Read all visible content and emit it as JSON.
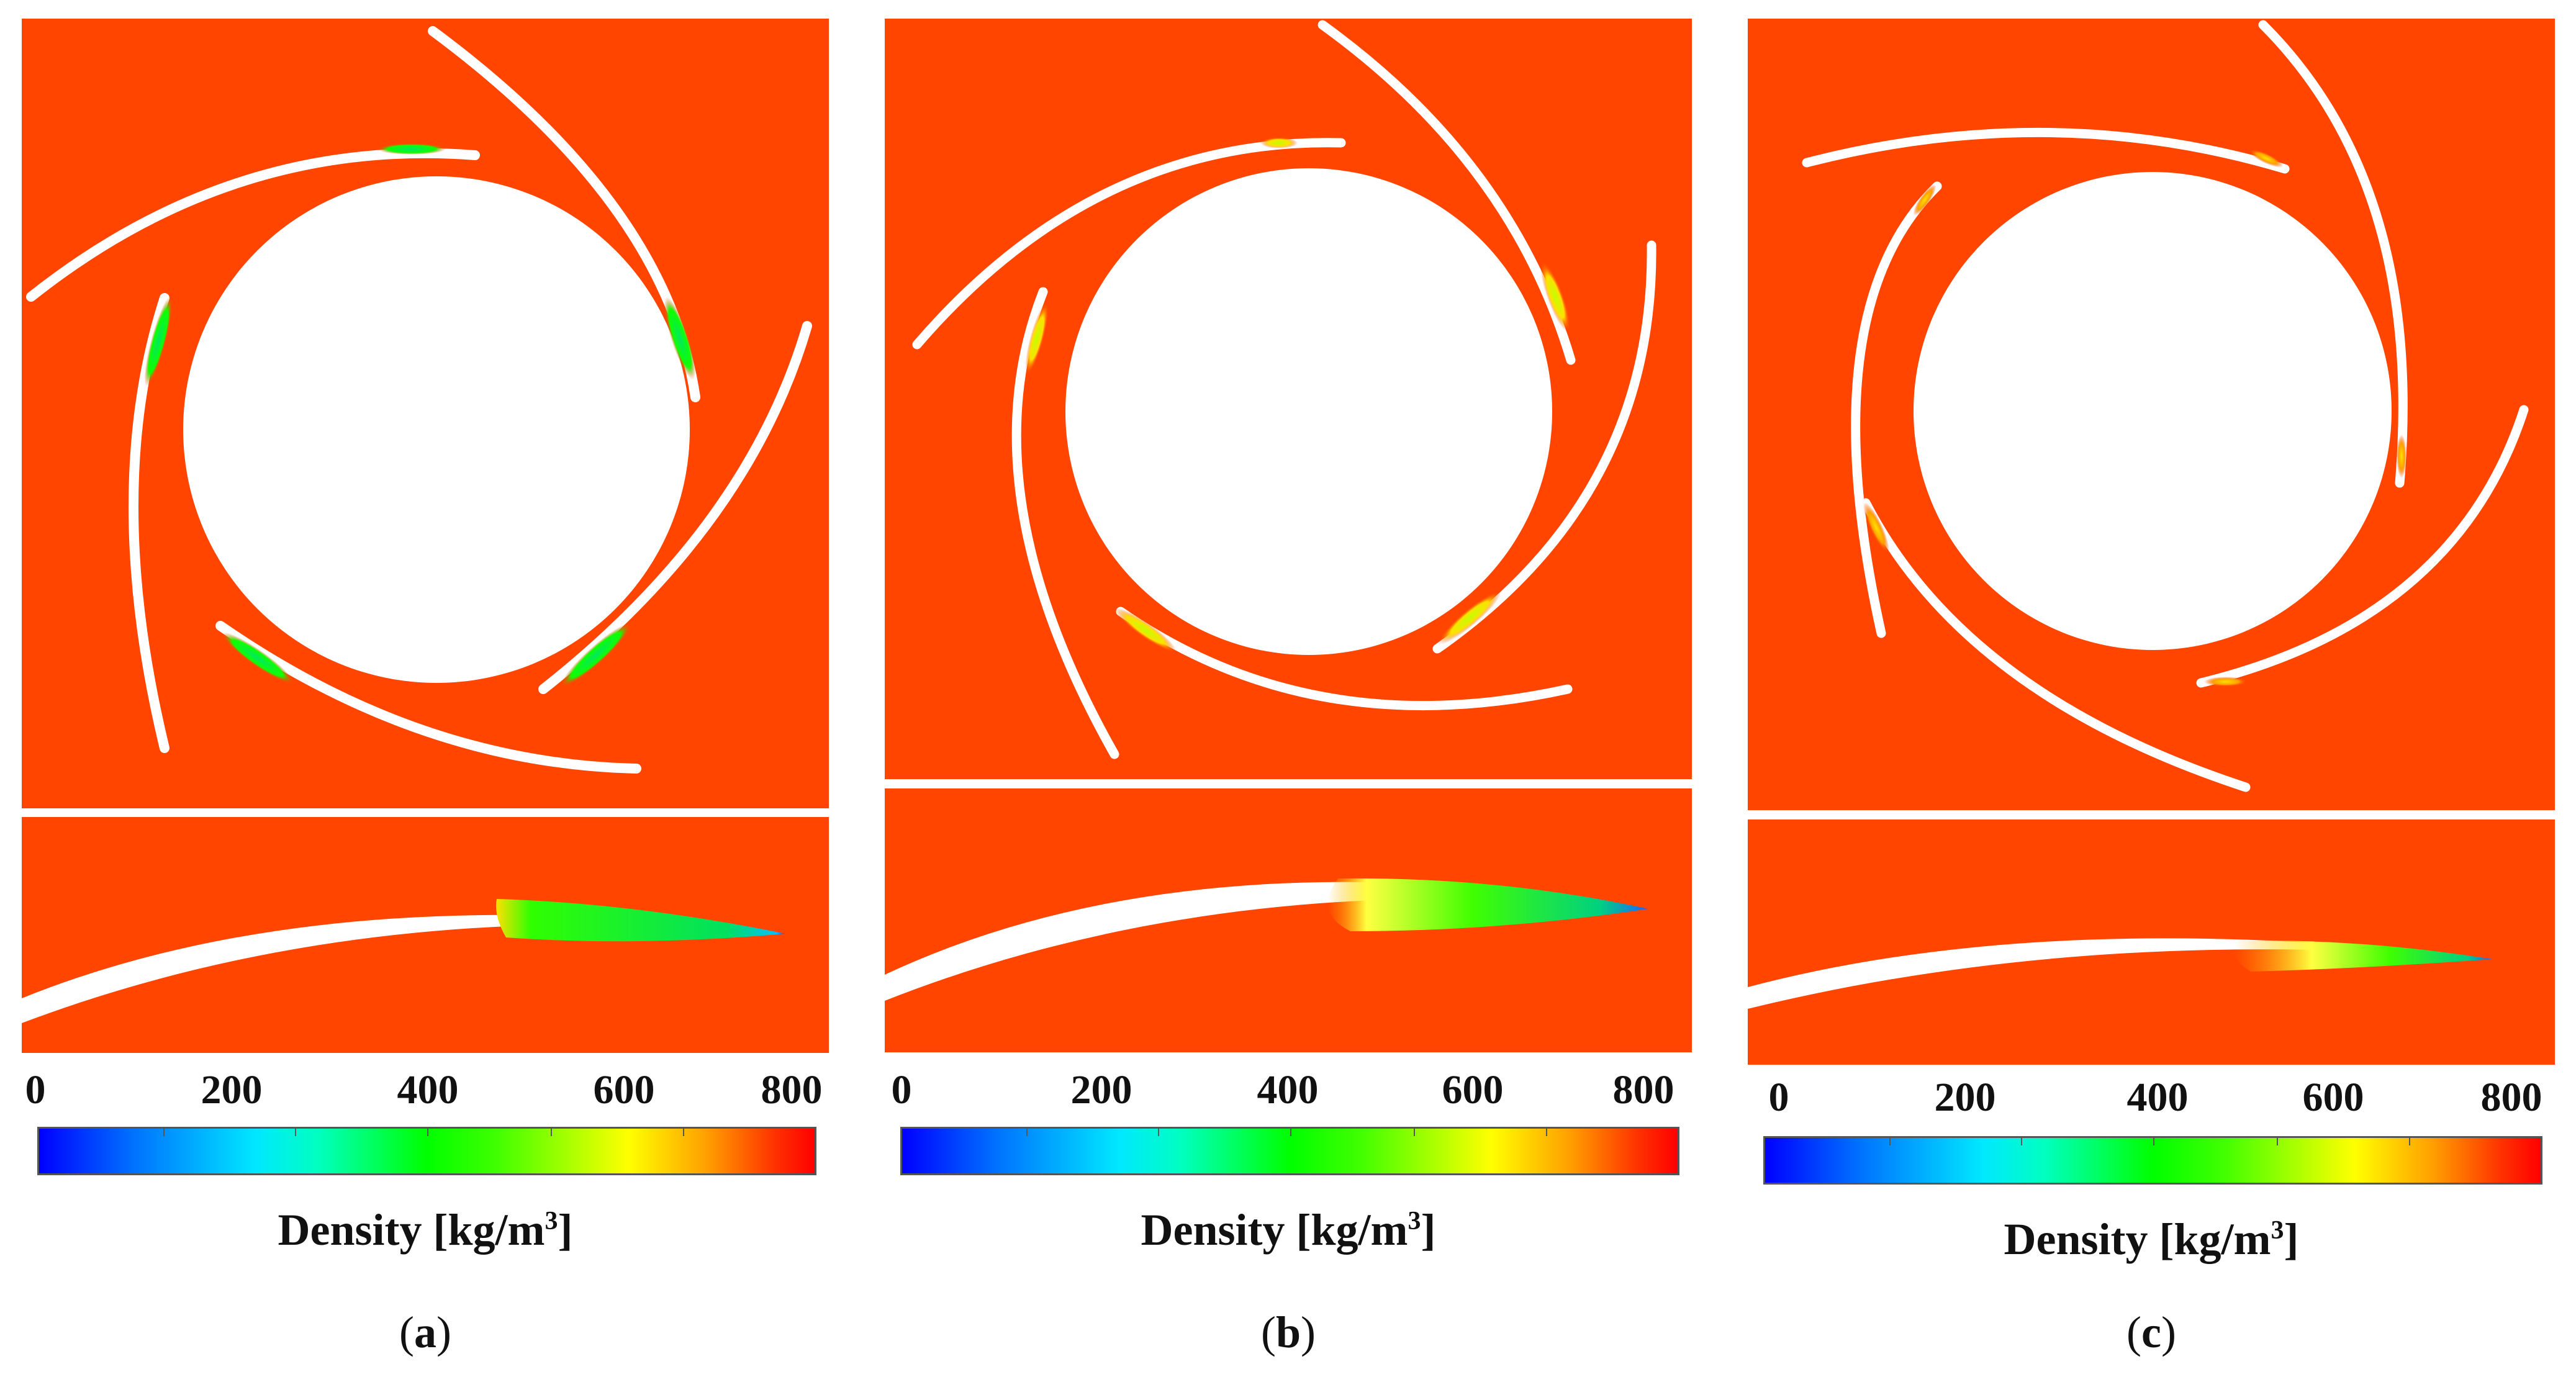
{
  "colors": {
    "field_background": "#ff4500",
    "blade": "#ffffff",
    "hub": "#ffffff",
    "colormap": [
      "#0000ff",
      "#00e8ff",
      "#00ff00",
      "#ffff00",
      "#ff0000"
    ]
  },
  "colorbar": {
    "tick_labels": [
      "0",
      "200",
      "400",
      "600",
      "800"
    ],
    "title_prefix": "Density [kg/m",
    "title_superscript": "3",
    "title_suffix": "]"
  },
  "panels": [
    {
      "caption_open": "(",
      "caption_letter": "a",
      "caption_close": ")"
    },
    {
      "caption_open": "(",
      "caption_letter": "b",
      "caption_close": ")"
    },
    {
      "caption_open": "(",
      "caption_letter": "c",
      "caption_close": ")"
    }
  ]
}
